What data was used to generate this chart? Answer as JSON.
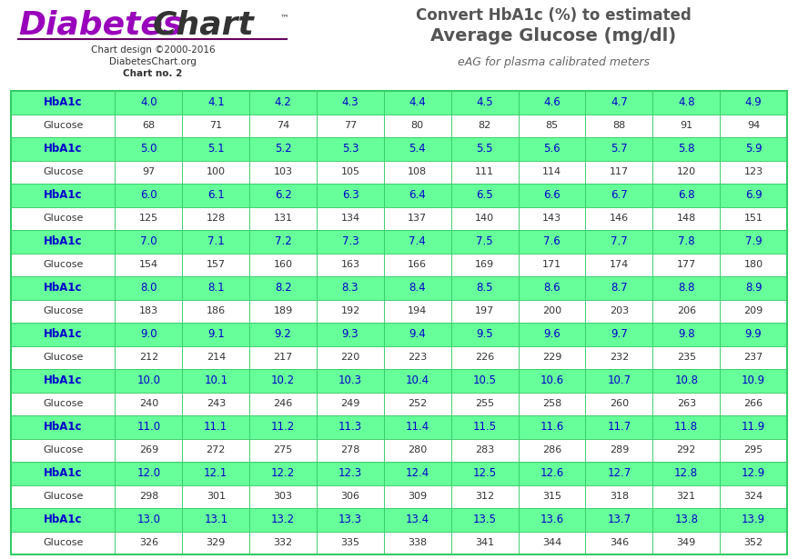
{
  "title_line1": "Convert HbA1c (%) to estimated",
  "title_line2": "Average Glucose (mg/dl)",
  "title_subtitle": "eAG for plasma calibrated meters",
  "logo_main": "DiabetesChart",
  "logo_diabetes_color": "#9900BB",
  "logo_chart_color": "#333333",
  "logo_underline_color": "#660066",
  "logo_subtext1": "Chart design ©2000-2016",
  "logo_subtext2": "DiabetesChart.org",
  "logo_subtext3": "Chart no. 2",
  "title_color": "#555555",
  "subtitle_color": "#666666",
  "hba1c_rows": [
    {
      "hba1c": [
        "HbA1c",
        "4.0",
        "4.1",
        "4.2",
        "4.3",
        "4.4",
        "4.5",
        "4.6",
        "4.7",
        "4.8",
        "4.9"
      ],
      "glucose": [
        "Glucose",
        "68",
        "71",
        "74",
        "77",
        "80",
        "82",
        "85",
        "88",
        "91",
        "94"
      ]
    },
    {
      "hba1c": [
        "HbA1c",
        "5.0",
        "5.1",
        "5.2",
        "5.3",
        "5.4",
        "5.5",
        "5.6",
        "5.7",
        "5.8",
        "5.9"
      ],
      "glucose": [
        "Glucose",
        "97",
        "100",
        "103",
        "105",
        "108",
        "111",
        "114",
        "117",
        "120",
        "123"
      ]
    },
    {
      "hba1c": [
        "HbA1c",
        "6.0",
        "6.1",
        "6.2",
        "6.3",
        "6.4",
        "6.5",
        "6.6",
        "6.7",
        "6.8",
        "6.9"
      ],
      "glucose": [
        "Glucose",
        "125",
        "128",
        "131",
        "134",
        "137",
        "140",
        "143",
        "146",
        "148",
        "151"
      ]
    },
    {
      "hba1c": [
        "HbA1c",
        "7.0",
        "7.1",
        "7.2",
        "7.3",
        "7.4",
        "7.5",
        "7.6",
        "7.7",
        "7.8",
        "7.9"
      ],
      "glucose": [
        "Glucose",
        "154",
        "157",
        "160",
        "163",
        "166",
        "169",
        "171",
        "174",
        "177",
        "180"
      ]
    },
    {
      "hba1c": [
        "HbA1c",
        "8.0",
        "8.1",
        "8.2",
        "8.3",
        "8.4",
        "8.5",
        "8.6",
        "8.7",
        "8.8",
        "8.9"
      ],
      "glucose": [
        "Glucose",
        "183",
        "186",
        "189",
        "192",
        "194",
        "197",
        "200",
        "203",
        "206",
        "209"
      ]
    },
    {
      "hba1c": [
        "HbA1c",
        "9.0",
        "9.1",
        "9.2",
        "9.3",
        "9.4",
        "9.5",
        "9.6",
        "9.7",
        "9.8",
        "9.9"
      ],
      "glucose": [
        "Glucose",
        "212",
        "214",
        "217",
        "220",
        "223",
        "226",
        "229",
        "232",
        "235",
        "237"
      ]
    },
    {
      "hba1c": [
        "HbA1c",
        "10.0",
        "10.1",
        "10.2",
        "10.3",
        "10.4",
        "10.5",
        "10.6",
        "10.7",
        "10.8",
        "10.9"
      ],
      "glucose": [
        "Glucose",
        "240",
        "243",
        "246",
        "249",
        "252",
        "255",
        "258",
        "260",
        "263",
        "266"
      ]
    },
    {
      "hba1c": [
        "HbA1c",
        "11.0",
        "11.1",
        "11.2",
        "11.3",
        "11.4",
        "11.5",
        "11.6",
        "11.7",
        "11.8",
        "11.9"
      ],
      "glucose": [
        "Glucose",
        "269",
        "272",
        "275",
        "278",
        "280",
        "283",
        "286",
        "289",
        "292",
        "295"
      ]
    },
    {
      "hba1c": [
        "HbA1c",
        "12.0",
        "12.1",
        "12.2",
        "12.3",
        "12.4",
        "12.5",
        "12.6",
        "12.7",
        "12.8",
        "12.9"
      ],
      "glucose": [
        "Glucose",
        "298",
        "301",
        "303",
        "306",
        "309",
        "312",
        "315",
        "318",
        "321",
        "324"
      ]
    },
    {
      "hba1c": [
        "HbA1c",
        "13.0",
        "13.1",
        "13.2",
        "13.3",
        "13.4",
        "13.5",
        "13.6",
        "13.7",
        "13.8",
        "13.9"
      ],
      "glucose": [
        "Glucose",
        "326",
        "329",
        "332",
        "335",
        "338",
        "341",
        "344",
        "346",
        "349",
        "352"
      ]
    }
  ],
  "hba1c_bg_color": "#66FF99",
  "glucose_bg_color": "#FFFFFF",
  "hba1c_text_color": "#0000CC",
  "glucose_label_color": "#333333",
  "glucose_val_color": "#333333",
  "table_border_color": "#33CC66",
  "fig_bg_color": "#FFFFFF",
  "col_widths": [
    1.55,
    1.0,
    1.0,
    1.0,
    1.0,
    1.0,
    1.0,
    1.0,
    1.0,
    1.0,
    1.0
  ]
}
